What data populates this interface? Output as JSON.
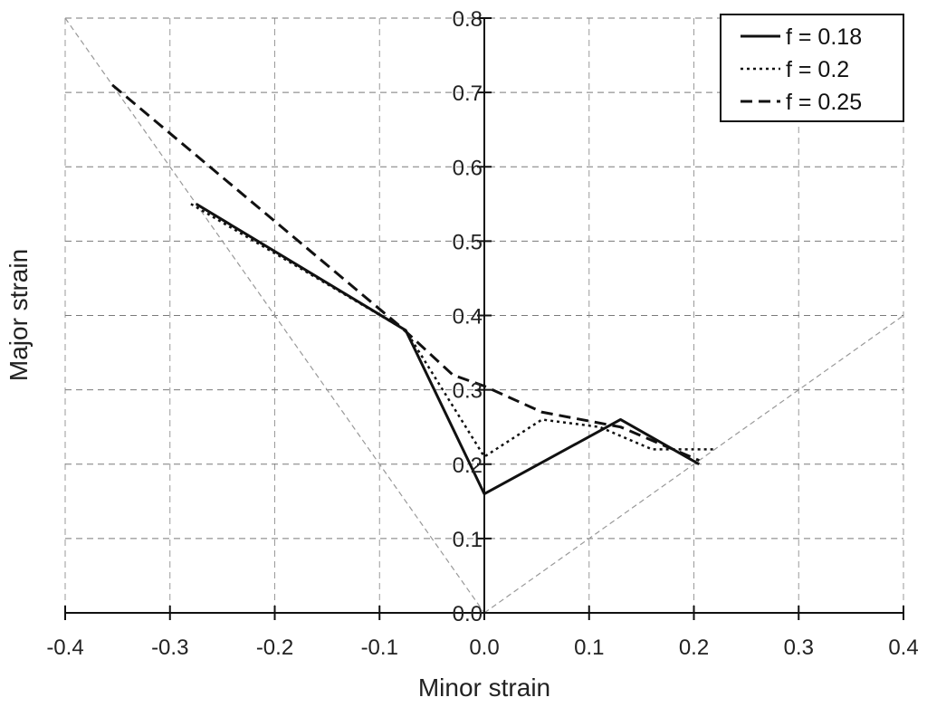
{
  "chart_data": {
    "type": "line",
    "title": "",
    "xlabel": "Minor strain",
    "ylabel": "Major strain",
    "xlim": [
      -0.4,
      0.4
    ],
    "ylim": [
      0.0,
      0.8
    ],
    "x_ticks": [
      "-0.4",
      "-0.3",
      "-0.2",
      "-0.1",
      "0.0",
      "0.1",
      "0.2",
      "0.3",
      "0.4"
    ],
    "y_ticks": [
      "0.0",
      "0.1",
      "0.2",
      "0.3",
      "0.4",
      "0.5",
      "0.6",
      "0.7",
      "0.8"
    ],
    "grid": true,
    "legend_position": "top-right",
    "series": [
      {
        "name": "f = 0.18",
        "style": "solid",
        "color": "#111111",
        "x": [
          -0.275,
          -0.075,
          0.0,
          0.13,
          0.205
        ],
        "y": [
          0.55,
          0.38,
          0.16,
          0.26,
          0.2
        ]
      },
      {
        "name": "f = 0.2",
        "style": "dotted",
        "color": "#111111",
        "x": [
          -0.28,
          -0.075,
          0.0,
          0.055,
          0.11,
          0.16,
          0.22
        ],
        "y": [
          0.55,
          0.38,
          0.21,
          0.26,
          0.25,
          0.22,
          0.22
        ]
      },
      {
        "name": "f = 0.25",
        "style": "dashed",
        "color": "#111111",
        "x": [
          -0.355,
          -0.08,
          -0.03,
          0.0,
          0.055,
          0.13,
          0.205
        ],
        "y": [
          0.71,
          0.385,
          0.32,
          0.305,
          0.27,
          0.25,
          0.205
        ]
      }
    ],
    "reference_lines": [
      {
        "x": [
          -0.4,
          0.0
        ],
        "y": [
          0.8,
          0.0
        ],
        "style": "dashed",
        "color": "#999999"
      },
      {
        "x": [
          0.0,
          0.4
        ],
        "y": [
          0.0,
          0.4
        ],
        "style": "dashed",
        "color": "#999999"
      }
    ]
  }
}
